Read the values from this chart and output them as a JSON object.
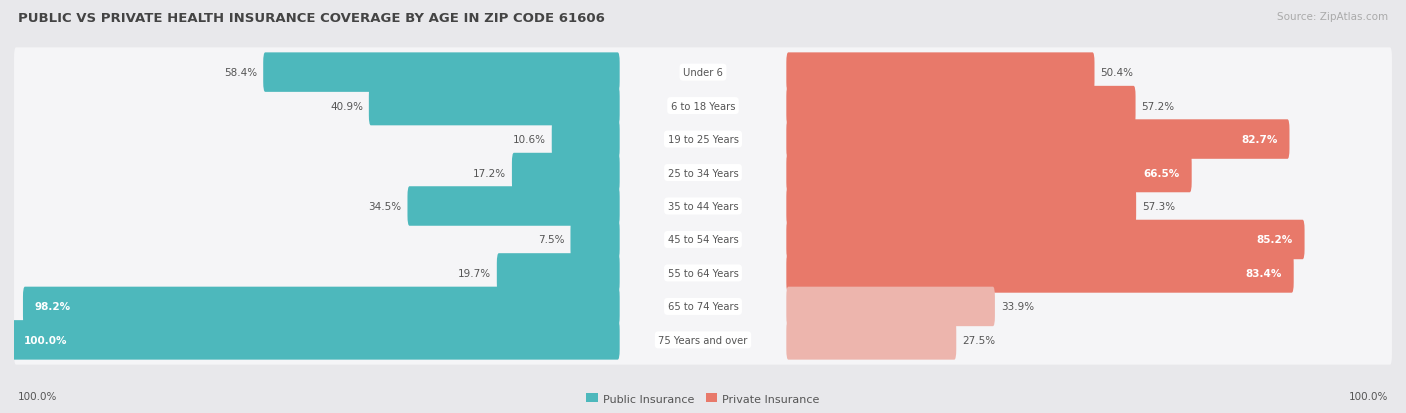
{
  "title": "PUBLIC VS PRIVATE HEALTH INSURANCE COVERAGE BY AGE IN ZIP CODE 61606",
  "source": "Source: ZipAtlas.com",
  "categories": [
    "Under 6",
    "6 to 18 Years",
    "19 to 25 Years",
    "25 to 34 Years",
    "35 to 44 Years",
    "45 to 54 Years",
    "55 to 64 Years",
    "65 to 74 Years",
    "75 Years and over"
  ],
  "public_values": [
    58.4,
    40.9,
    10.6,
    17.2,
    34.5,
    7.5,
    19.7,
    98.2,
    100.0
  ],
  "private_values": [
    50.4,
    57.2,
    82.7,
    66.5,
    57.3,
    85.2,
    83.4,
    33.9,
    27.5
  ],
  "public_color": "#4db8bc",
  "private_colors": [
    "#e8796a",
    "#e8796a",
    "#e8796a",
    "#e8796a",
    "#e8796a",
    "#e8796a",
    "#e8796a",
    "#edb5ad",
    "#edb5ad"
  ],
  "bg_color": "#e8e8eb",
  "row_bg_color": "#f5f5f7",
  "title_color": "#444444",
  "source_color": "#aaaaaa",
  "text_dark": "#555555",
  "text_white": "#ffffff",
  "legend_label_public": "Public Insurance",
  "legend_label_private": "Private Insurance",
  "figsize": [
    14.06,
    4.14
  ],
  "dpi": 100,
  "pub_label_inside_threshold": 85.0,
  "priv_label_inside_threshold": 60.0
}
